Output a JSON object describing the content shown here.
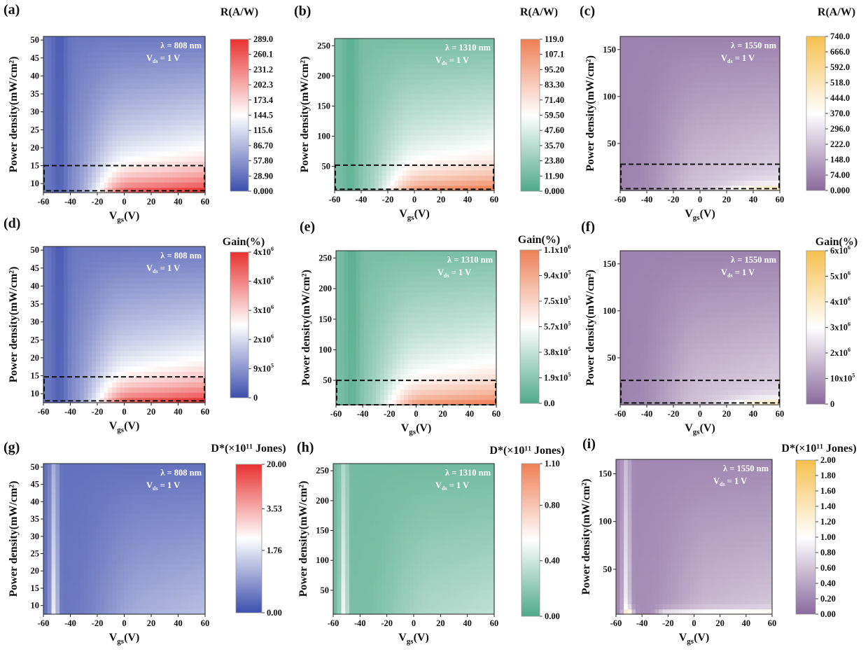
{
  "colormaps": {
    "blue_white_red": [
      "#3d4fae",
      "#ffffff",
      "#e8312f"
    ],
    "green_white_orange": [
      "#4fa98a",
      "#ffffff",
      "#ee7f55"
    ],
    "purple_white_yellow": [
      "#8a6a9e",
      "#ffffff",
      "#f6c04e"
    ]
  },
  "chart_data": [
    {
      "panel": "(a)",
      "type": "heatmap",
      "colormap": "blue_white_red",
      "annotation": {
        "wavelength": "λ = 808 nm",
        "vds": {
          "main": "V",
          "sub": "ds",
          "tail": " = 1 V"
        }
      },
      "xlabel": {
        "main": "V",
        "sub": "gs",
        "tail": "(V)"
      },
      "ylabel": "Power density(mW/cm²)",
      "xlim": [
        -60,
        60
      ],
      "ylim": [
        7.5,
        51
      ],
      "xticks": [
        -60,
        -40,
        -20,
        0,
        20,
        40,
        60
      ],
      "yticks": [
        10,
        15,
        20,
        25,
        30,
        35,
        40,
        45,
        50
      ],
      "colorbar": {
        "title": "R(A/W)",
        "ticks": [
          "0.000",
          "28.90",
          "57.80",
          "86.70",
          "115.6",
          "144.5",
          "173.4",
          "202.3",
          "231.2",
          "260.1",
          "289.0"
        ]
      },
      "highlight_box": {
        "x": [
          -60,
          60
        ],
        "y": [
          8,
          15
        ]
      }
    },
    {
      "panel": "(b)",
      "type": "heatmap",
      "colormap": "green_white_orange",
      "annotation": {
        "wavelength": "λ = 1310 nm",
        "vds": {
          "main": "V",
          "sub": "ds",
          "tail": " = 1 V"
        }
      },
      "xlabel": {
        "main": "V",
        "sub": "gs",
        "tail": "(V)"
      },
      "ylabel": "Power density(mW/cm²)",
      "xlim": [
        -60,
        60
      ],
      "ylim": [
        10,
        262
      ],
      "xticks": [
        -60,
        -40,
        -20,
        0,
        20,
        40,
        60
      ],
      "yticks": [
        50,
        100,
        150,
        200,
        250
      ],
      "colorbar": {
        "title": "R(A/W)",
        "ticks": [
          "0.000",
          "11.90",
          "23.80",
          "35.70",
          "47.60",
          "59.50",
          "71.40",
          "83.30",
          "95.20",
          "107.1",
          "119.0"
        ]
      },
      "highlight_box": {
        "x": [
          -60,
          60
        ],
        "y": [
          12,
          52
        ]
      }
    },
    {
      "panel": "(c)",
      "type": "heatmap",
      "colormap": "purple_white_yellow",
      "annotation": {
        "wavelength": "λ = 1550 nm",
        "vds": {
          "main": "V",
          "sub": "ds",
          "tail": " = 1 V"
        }
      },
      "xlabel": {
        "main": "V",
        "sub": "gs",
        "tail": "(V)"
      },
      "ylabel": "Power density(mW/cm²)",
      "xlim": [
        -60,
        60
      ],
      "ylim": [
        0,
        164
      ],
      "xticks": [
        -60,
        -40,
        -20,
        0,
        20,
        40,
        60
      ],
      "yticks": [
        50,
        100,
        150
      ],
      "colorbar": {
        "title": "R(A/W)",
        "ticks": [
          "0.000",
          "74.00",
          "148.0",
          "222.0",
          "296.0",
          "370.0",
          "444.0",
          "518.0",
          "592.0",
          "666.0",
          "740.0"
        ]
      },
      "highlight_box": {
        "x": [
          -60,
          60
        ],
        "y": [
          2,
          28
        ]
      }
    },
    {
      "panel": "(d)",
      "type": "heatmap",
      "colormap": "blue_white_red",
      "annotation": {
        "wavelength": "λ = 808 nm",
        "vds": {
          "main": "V",
          "sub": "ds",
          "tail": " = 1 V"
        }
      },
      "xlabel": {
        "main": "V",
        "sub": "gs",
        "tail": "(V)"
      },
      "ylabel": "Power density(mW/cm²)",
      "xlim": [
        -60,
        60
      ],
      "ylim": [
        7.5,
        51
      ],
      "xticks": [
        -60,
        -40,
        -20,
        0,
        20,
        40,
        60
      ],
      "yticks": [
        10,
        15,
        20,
        25,
        30,
        35,
        40,
        45,
        50
      ],
      "colorbar": {
        "title": "Gain(%)",
        "ticks": [
          {
            "m": "0"
          },
          {
            "m": "9x10",
            "e": "5"
          },
          {
            "m": "2x10",
            "e": "6"
          },
          {
            "m": "3x10",
            "e": "6"
          },
          {
            "m": "4x10",
            "e": "6"
          },
          {
            "m": "4x10",
            "e": "6"
          }
        ]
      },
      "highlight_box": {
        "x": [
          -60,
          60
        ],
        "y": [
          8,
          14.7
        ]
      }
    },
    {
      "panel": "(e)",
      "type": "heatmap",
      "colormap": "green_white_orange",
      "annotation": {
        "wavelength": "λ = 1310 nm",
        "vds": {
          "main": "V",
          "sub": "ds",
          "tail": " = 1 V"
        }
      },
      "xlabel": {
        "main": "V",
        "sub": "gs",
        "tail": "(V)"
      },
      "ylabel": "Power density(mW/cm²)",
      "xlim": [
        -60,
        60
      ],
      "ylim": [
        10,
        262
      ],
      "xticks": [
        -60,
        -40,
        -20,
        0,
        20,
        40,
        60
      ],
      "yticks": [
        50,
        100,
        150,
        200,
        250
      ],
      "colorbar": {
        "title": "Gain(%)",
        "ticks": [
          {
            "m": "0.0"
          },
          {
            "m": "1.9x10",
            "e": "5"
          },
          {
            "m": "3.8x10",
            "e": "5"
          },
          {
            "m": "5.7x10",
            "e": "5"
          },
          {
            "m": "7.5x10",
            "e": "5"
          },
          {
            "m": "9.4x10",
            "e": "5"
          },
          {
            "m": "1.1x10",
            "e": "6"
          }
        ]
      },
      "highlight_box": {
        "x": [
          -60,
          60
        ],
        "y": [
          10,
          50
        ]
      }
    },
    {
      "panel": "(f)",
      "type": "heatmap",
      "colormap": "purple_white_yellow",
      "annotation": {
        "wavelength": "λ = 1550 nm",
        "vds": {
          "main": "V",
          "sub": "ds",
          "tail": " = 1 V"
        }
      },
      "xlabel": {
        "main": "V",
        "sub": "gs",
        "tail": "(V)"
      },
      "ylabel": "Power density(mW/cm²)",
      "xlim": [
        -60,
        60
      ],
      "ylim": [
        0,
        164
      ],
      "xticks": [
        -60,
        -40,
        -20,
        0,
        20,
        40,
        60
      ],
      "yticks": [
        50,
        100,
        150
      ],
      "colorbar": {
        "title": "Gain(%)",
        "ticks": [
          {
            "m": "0"
          },
          {
            "m": "10x10",
            "e": "5"
          },
          {
            "m": "2x10",
            "e": "6"
          },
          {
            "m": "3x10",
            "e": "6"
          },
          {
            "m": "4x10",
            "e": "6"
          },
          {
            "m": "5x10",
            "e": "6"
          },
          {
            "m": "6x10",
            "e": "6"
          }
        ]
      },
      "highlight_box": {
        "x": [
          -60,
          60
        ],
        "y": [
          2,
          26
        ]
      }
    },
    {
      "panel": "(g)",
      "type": "heatmap",
      "colormap": "blue_white_red",
      "annotation": {
        "wavelength": "λ = 808 nm",
        "vds": {
          "main": "V",
          "sub": "ds",
          "tail": " = 1 V"
        }
      },
      "xlabel": {
        "main": "V",
        "sub": "gs",
        "tail": "(V)"
      },
      "ylabel": "Power density(mW/cm²)",
      "xlim": [
        -60,
        60
      ],
      "ylim": [
        7.5,
        51
      ],
      "xticks": [
        -60,
        -40,
        -20,
        0,
        20,
        40,
        60
      ],
      "yticks": [
        10,
        15,
        20,
        25,
        30,
        35,
        40,
        45,
        50
      ],
      "colorbar": {
        "title": "D*(×10¹¹ Jones)",
        "ticks": [
          "0.00",
          "1.76",
          "3.53",
          "20.00"
        ]
      }
    },
    {
      "panel": "(h)",
      "type": "heatmap",
      "colormap": "green_white_orange",
      "annotation": {
        "wavelength": "λ = 1310 nm",
        "vds": {
          "main": "V",
          "sub": "ds",
          "tail": " = 1 V"
        }
      },
      "xlabel": {
        "main": "V",
        "sub": "gs",
        "tail": "(V)"
      },
      "ylabel": "Power density(mW/cm²)",
      "xlim": [
        -60,
        60
      ],
      "ylim": [
        10,
        262
      ],
      "xticks": [
        -60,
        -40,
        -20,
        0,
        20,
        40,
        60
      ],
      "yticks": [
        50,
        100,
        150,
        200,
        250
      ],
      "colorbar": {
        "title": "D*(×10¹¹ Jones)",
        "ticks": [
          "0.00",
          "0.40",
          "0.80",
          "1.10"
        ]
      }
    },
    {
      "panel": "(i)",
      "type": "heatmap",
      "colormap": "purple_white_yellow",
      "annotation": {
        "wavelength": "λ = 1550 nm",
        "vds": {
          "main": "V",
          "sub": "ds",
          "tail": " = 1 V"
        }
      },
      "xlabel": {
        "main": "V",
        "sub": "gs",
        "tail": "(V)"
      },
      "ylabel": "Power density(mW/cm²)",
      "xlim": [
        -60,
        60
      ],
      "ylim": [
        3,
        165
      ],
      "xticks": [
        -60,
        -40,
        -20,
        0,
        20,
        40,
        60
      ],
      "yticks": [
        50,
        100,
        150
      ],
      "colorbar": {
        "title": "D*(×10¹¹ Jones)",
        "ticks": [
          "0.00",
          "0.20",
          "0.40",
          "0.60",
          "0.80",
          "1.00",
          "1.20",
          "1.40",
          "1.60",
          "1.80",
          "2.00"
        ]
      }
    }
  ]
}
